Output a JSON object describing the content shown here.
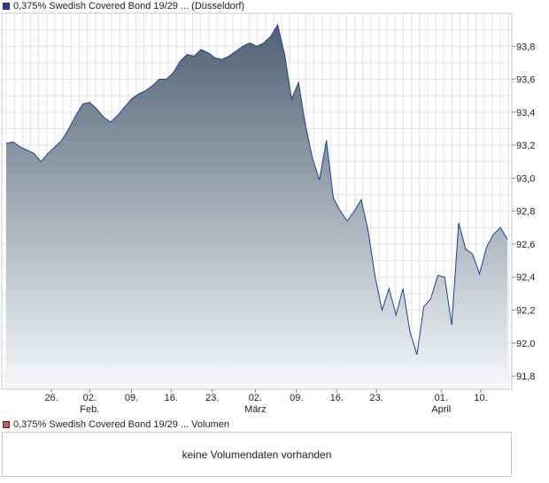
{
  "legend": {
    "price_label": "0,375% Swedish Covered Bond 19/29 ... (Düsseldorf)",
    "price_color": "#1f3f99",
    "volume_label": "0,375% Swedish Covered Bond 19/29 ... Volumen",
    "volume_color": "#d35454"
  },
  "volume_panel": {
    "message": "keine Volumendaten vorhanden"
  },
  "chart_data": {
    "type": "area",
    "series": [
      {
        "values": [
          93.21,
          93.22,
          93.19,
          93.17,
          93.15,
          93.1,
          93.15,
          93.19,
          93.23,
          93.3,
          93.38,
          93.45,
          93.46,
          93.42,
          93.37,
          93.34,
          93.38,
          93.43,
          93.48,
          93.51,
          93.53,
          93.56,
          93.6,
          93.6,
          93.64,
          93.71,
          93.75,
          93.74,
          93.78,
          93.76,
          93.73,
          93.72,
          93.74,
          93.77,
          93.8,
          93.82,
          93.8,
          93.82,
          93.86,
          93.93,
          93.75,
          93.48,
          93.58,
          93.32,
          93.12,
          92.99,
          93.23,
          92.88,
          92.8,
          92.74,
          92.8,
          92.87,
          92.68,
          92.4,
          92.2,
          92.33,
          92.17,
          92.33,
          92.07,
          91.93,
          92.22,
          92.27,
          92.41,
          92.4,
          92.11,
          92.73,
          92.57,
          92.54,
          92.42,
          92.58,
          92.66,
          92.7,
          92.63
        ]
      }
    ],
    "x_ticks": [
      "26.",
      "02.",
      "09.",
      "16.",
      "23.",
      "02.",
      "09.",
      "16.",
      "23.",
      "01.",
      "10."
    ],
    "x_month_labels": [
      "Feb.",
      "März",
      "April"
    ],
    "y_ticks": [
      "91,8",
      "92,0",
      "92,2",
      "92,4",
      "92,6",
      "92,8",
      "93,0",
      "93,2",
      "93,4",
      "93,6",
      "93,8"
    ],
    "ylim": [
      91.72,
      94.0
    ],
    "grid": true,
    "line_color": "#1f3f99",
    "fill_top_color": "#4e6273",
    "fill_bottom_color": "#f6f7f9"
  }
}
